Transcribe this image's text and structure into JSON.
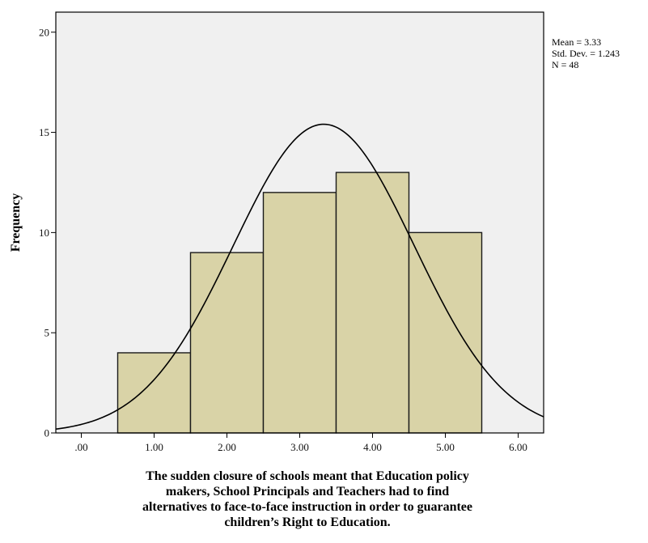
{
  "chart_data": {
    "type": "bar",
    "subtype": "histogram",
    "categories": [
      "1.00",
      "2.00",
      "3.00",
      "4.00",
      "5.00"
    ],
    "bins": [
      {
        "center": 1.0,
        "start": 0.5,
        "end": 1.5,
        "count": 4
      },
      {
        "center": 2.0,
        "start": 1.5,
        "end": 2.5,
        "count": 9
      },
      {
        "center": 3.0,
        "start": 2.5,
        "end": 3.5,
        "count": 12
      },
      {
        "center": 4.0,
        "start": 3.5,
        "end": 4.5,
        "count": 13
      },
      {
        "center": 5.0,
        "start": 4.5,
        "end": 5.5,
        "count": 10
      }
    ],
    "values": [
      4,
      9,
      12,
      13,
      10
    ],
    "normal_curve": {
      "shown": true,
      "mean": 3.33,
      "sd": 1.243,
      "n": 48,
      "bin_width": 1
    },
    "xlabel_lines": [
      "The sudden closure of schools meant that Education policy",
      "makers, School Principals and Teachers had to find",
      "alternatives to face-to-face instruction in order to guarantee",
      "children’s Right to Education."
    ],
    "ylabel": "Frequency",
    "xlim": [
      -0.35,
      6.35
    ],
    "ylim": [
      0,
      21
    ],
    "x_ticks": [
      {
        "value": 0,
        "label": ".00"
      },
      {
        "value": 1,
        "label": "1.00"
      },
      {
        "value": 2,
        "label": "2.00"
      },
      {
        "value": 3,
        "label": "3.00"
      },
      {
        "value": 4,
        "label": "4.00"
      },
      {
        "value": 5,
        "label": "5.00"
      },
      {
        "value": 6,
        "label": "6.00"
      }
    ],
    "y_ticks": [
      {
        "value": 0,
        "label": "0"
      },
      {
        "value": 5,
        "label": "5"
      },
      {
        "value": 10,
        "label": "10"
      },
      {
        "value": 15,
        "label": "15"
      },
      {
        "value": 20,
        "label": "20"
      }
    ],
    "stats_legend": [
      "Mean = 3.33",
      "Std. Dev. = 1.243",
      "N = 48"
    ],
    "legend_position": "top-right, outside plot",
    "grid": false,
    "colors": {
      "bar_fill": "#d9d3a7",
      "bar_stroke": "#1a1a1a",
      "plot_background": "#f0f0f0",
      "curve": "#000000"
    }
  }
}
